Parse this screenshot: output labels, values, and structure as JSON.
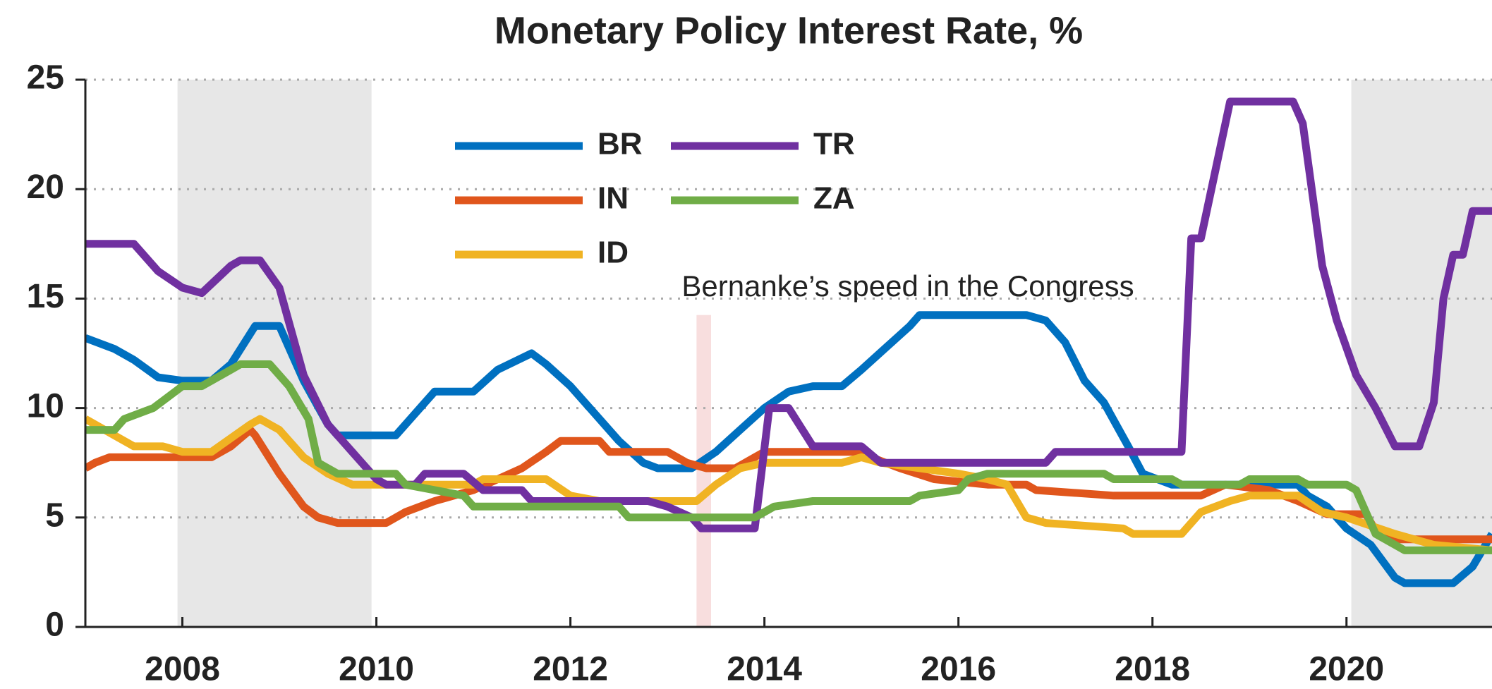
{
  "chart_data": {
    "type": "line",
    "title": "Monetary Policy Interest Rate, %",
    "xlim": [
      2007,
      2021.5
    ],
    "ylim": [
      0,
      25
    ],
    "xticks": [
      2008,
      2010,
      2012,
      2014,
      2016,
      2018,
      2020
    ],
    "yticks": [
      0,
      5,
      10,
      15,
      20,
      25
    ],
    "grid": true,
    "shaded_spans": [
      [
        2007.95,
        2009.95
      ],
      [
        2020.05,
        2021.5
      ]
    ],
    "annotation": {
      "text": "Bernanke’s speed in the Congress",
      "x": [
        2013.3,
        2013.45
      ],
      "y": 14.25
    },
    "series": [
      {
        "name": "BR",
        "color": "#0070c0",
        "x": [
          2007,
          2007.3,
          2007.5,
          2007.75,
          2008,
          2008.3,
          2008.5,
          2008.75,
          2009,
          2009.25,
          2009.5,
          2009.6,
          2010.2,
          2010.5,
          2010.6,
          2011,
          2011.25,
          2011.6,
          2011.75,
          2012,
          2012.25,
          2012.5,
          2012.75,
          2012.9,
          2013.25,
          2013.5,
          2013.75,
          2014,
          2014.25,
          2014.5,
          2014.8,
          2015,
          2015.25,
          2015.5,
          2015.6,
          2016.7,
          2016.9,
          2017.1,
          2017.3,
          2017.5,
          2017.75,
          2017.9,
          2018.2,
          2019.5,
          2019.6,
          2019.8,
          2020,
          2020.25,
          2020.5,
          2020.6,
          2021.1,
          2021.3,
          2021.5
        ],
        "values": [
          13.2,
          12.7,
          12.2,
          11.4,
          11.25,
          11.25,
          12.0,
          13.75,
          13.75,
          11.25,
          9.25,
          8.75,
          8.75,
          10.25,
          10.75,
          10.75,
          11.75,
          12.5,
          12.0,
          11.0,
          9.75,
          8.5,
          7.5,
          7.25,
          7.25,
          8.0,
          9.0,
          10.0,
          10.75,
          11.0,
          11.0,
          11.75,
          12.75,
          13.75,
          14.25,
          14.25,
          14.0,
          13.0,
          11.25,
          10.25,
          8.25,
          7.0,
          6.5,
          6.5,
          6.0,
          5.5,
          4.5,
          3.75,
          2.25,
          2.0,
          2.0,
          2.75,
          4.25
        ]
      },
      {
        "name": "IN",
        "color": "#e0561c",
        "x": [
          2007,
          2007.1,
          2007.25,
          2008.3,
          2008.5,
          2008.7,
          2008.75,
          2009,
          2009.25,
          2009.4,
          2009.6,
          2010.1,
          2010.3,
          2010.6,
          2011,
          2011.5,
          2011.75,
          2011.9,
          2012.3,
          2012.4,
          2013,
          2013.2,
          2013.4,
          2013.7,
          2013.9,
          2014,
          2015,
          2015.1,
          2015.4,
          2015.75,
          2016.3,
          2016.7,
          2016.8,
          2017.6,
          2018.5,
          2018.75,
          2019.2,
          2019.5,
          2019.8,
          2020.2,
          2020.3,
          2020.5,
          2021.5
        ],
        "values": [
          7.25,
          7.5,
          7.75,
          7.75,
          8.25,
          9.0,
          8.75,
          7.0,
          5.5,
          5.0,
          4.75,
          4.75,
          5.25,
          5.75,
          6.25,
          7.25,
          8.0,
          8.5,
          8.5,
          8.0,
          8.0,
          7.5,
          7.25,
          7.25,
          7.75,
          8.0,
          8.0,
          7.75,
          7.25,
          6.75,
          6.5,
          6.5,
          6.25,
          6.0,
          6.0,
          6.5,
          6.25,
          5.75,
          5.15,
          5.15,
          4.4,
          4.0,
          4.0
        ]
      },
      {
        "name": "ID",
        "color": "#f0b323",
        "x": [
          2007,
          2007.3,
          2007.5,
          2007.8,
          2008,
          2008.3,
          2008.7,
          2008.8,
          2009,
          2009.25,
          2009.5,
          2009.75,
          2010,
          2011,
          2011.1,
          2011.75,
          2012,
          2012.3,
          2013.3,
          2013.5,
          2013.75,
          2014,
          2014.8,
          2015,
          2015.2,
          2016,
          2016.3,
          2016.5,
          2016.7,
          2016.9,
          2017.7,
          2017.8,
          2018.3,
          2018.5,
          2018.8,
          2019,
          2019.5,
          2019.75,
          2020,
          2020.5,
          2020.9,
          2021.5
        ],
        "values": [
          9.5,
          8.75,
          8.25,
          8.25,
          8.0,
          8.0,
          9.25,
          9.5,
          9.0,
          7.75,
          7.0,
          6.5,
          6.5,
          6.5,
          6.75,
          6.75,
          6.0,
          5.75,
          5.75,
          6.5,
          7.25,
          7.5,
          7.5,
          7.75,
          7.5,
          7.0,
          6.75,
          6.5,
          5.0,
          4.75,
          4.5,
          4.25,
          4.25,
          5.25,
          5.75,
          6.0,
          6.0,
          5.25,
          5.0,
          4.25,
          3.75,
          3.5
        ]
      },
      {
        "name": "TR",
        "color": "#7030a0",
        "x": [
          2007,
          2007.5,
          2007.75,
          2008,
          2008.2,
          2008.5,
          2008.6,
          2008.8,
          2009,
          2009.25,
          2009.5,
          2009.75,
          2010,
          2010.1,
          2010.4,
          2010.5,
          2010.9,
          2011.1,
          2011.5,
          2011.6,
          2012.8,
          2013,
          2013.25,
          2013.35,
          2013.9,
          2014.05,
          2014.25,
          2014.5,
          2015,
          2015.2,
          2016.9,
          2017,
          2018.3,
          2018.4,
          2018.5,
          2018.8,
          2019.45,
          2019.55,
          2019.75,
          2019.9,
          2020.1,
          2020.3,
          2020.5,
          2020.75,
          2020.9,
          2021,
          2021.1,
          2021.2,
          2021.3,
          2021.5
        ],
        "values": [
          17.5,
          17.5,
          16.25,
          15.5,
          15.25,
          16.5,
          16.75,
          16.75,
          15.5,
          11.5,
          9.25,
          8.0,
          6.75,
          6.5,
          6.5,
          7.0,
          7.0,
          6.25,
          6.25,
          5.75,
          5.75,
          5.5,
          5.0,
          4.5,
          4.5,
          10.0,
          10.0,
          8.25,
          8.25,
          7.5,
          7.5,
          8.0,
          8.0,
          17.75,
          17.75,
          24.0,
          24.0,
          23.0,
          16.5,
          14.0,
          11.5,
          10.0,
          8.25,
          8.25,
          10.25,
          15.0,
          17.0,
          17.0,
          19.0,
          19.0
        ]
      },
      {
        "name": "ZA",
        "color": "#70ad47",
        "x": [
          2007,
          2007.3,
          2007.4,
          2007.7,
          2008,
          2008.2,
          2008.5,
          2008.6,
          2008.9,
          2009.1,
          2009.3,
          2009.4,
          2009.6,
          2010.2,
          2010.3,
          2010.9,
          2011,
          2012.5,
          2012.6,
          2013.9,
          2014.1,
          2014.5,
          2015.5,
          2015.6,
          2016,
          2016.1,
          2016.3,
          2017.5,
          2017.6,
          2018.2,
          2018.3,
          2018.9,
          2019,
          2019.5,
          2019.6,
          2020,
          2020.1,
          2020.2,
          2020.3,
          2020.5,
          2020.6,
          2021.5
        ],
        "values": [
          9.0,
          9.0,
          9.5,
          10.0,
          11.0,
          11.0,
          11.75,
          12.0,
          12.0,
          11.0,
          9.5,
          7.5,
          7.0,
          7.0,
          6.5,
          6.0,
          5.5,
          5.5,
          5.0,
          5.0,
          5.5,
          5.75,
          5.75,
          6.0,
          6.25,
          6.75,
          7.0,
          7.0,
          6.75,
          6.75,
          6.5,
          6.5,
          6.75,
          6.75,
          6.5,
          6.5,
          6.25,
          5.25,
          4.25,
          3.75,
          3.5,
          3.5
        ]
      }
    ]
  }
}
